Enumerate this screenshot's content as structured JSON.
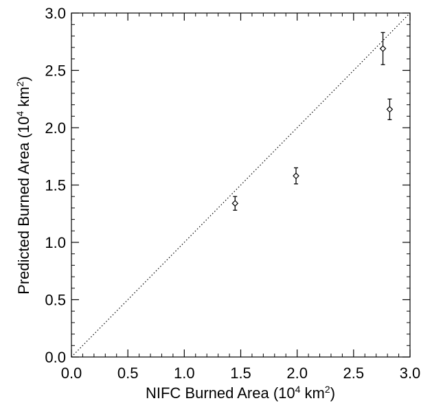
{
  "chart_data": {
    "type": "scatter",
    "title": "",
    "xlabel": "NIFC Burned Area (10",
    "xlabel_sup": "4",
    "xlabel_mid": " km",
    "xlabel_sup2": "2",
    "xlabel_end": ")",
    "ylabel": "Predicted Burned Area (10",
    "ylabel_sup": "4",
    "ylabel_mid": " km",
    "ylabel_sup2": "2",
    "ylabel_end": ")",
    "xlim": [
      0.0,
      3.0
    ],
    "ylim": [
      0.0,
      3.0
    ],
    "x_ticks": [
      "0.0",
      "0.5",
      "1.0",
      "1.5",
      "2.0",
      "2.5",
      "3.0"
    ],
    "y_ticks": [
      "0.0",
      "0.5",
      "1.0",
      "1.5",
      "2.0",
      "2.5",
      "3.0"
    ],
    "grid": false,
    "legend": "none",
    "reference_line": {
      "style": "dotted",
      "from": [
        0.0,
        0.0
      ],
      "to": [
        3.0,
        3.0
      ]
    },
    "marker": "diamond",
    "points": [
      {
        "x": 1.45,
        "y": 1.34,
        "y_err": 0.06
      },
      {
        "x": 1.99,
        "y": 1.58,
        "y_err": 0.07
      },
      {
        "x": 2.76,
        "y": 2.69,
        "y_err": 0.14
      },
      {
        "x": 2.82,
        "y": 2.16,
        "y_err": 0.09
      }
    ]
  }
}
